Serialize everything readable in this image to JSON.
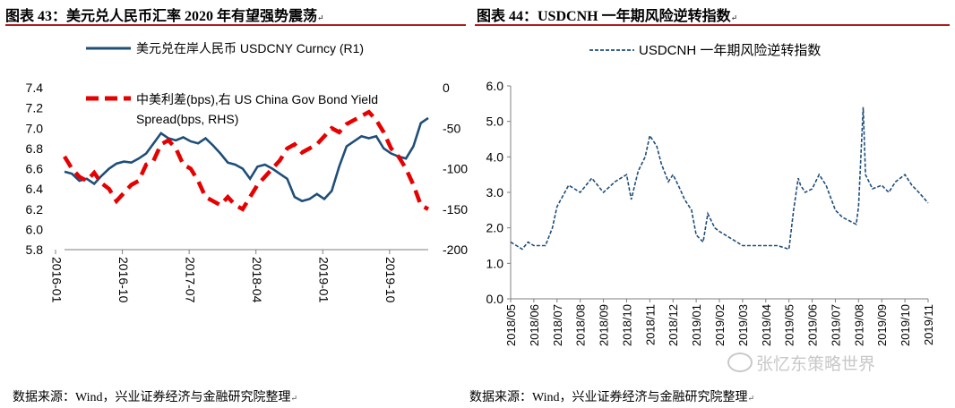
{
  "left": {
    "title": "图表 43：美元兑人民币汇率 2020 年有望强势震荡",
    "source": "数据来源：Wind，兴业证券经济与金融研究院整理"
  },
  "right": {
    "title": "图表 44：USDCNH 一年期风险逆转指数",
    "source": "数据来源：Wind，兴业证券经济与金融研究院整理"
  },
  "watermark": "张忆东策略世界",
  "colors": {
    "navy": "#1f4e79",
    "red": "#e60000",
    "rule": "#b01c1c",
    "axis": "#7f7f7f"
  },
  "chart_data": [
    {
      "type": "line",
      "title": "图表 43：美元兑人民币汇率 2020 年有望强势震荡",
      "xlabel": "",
      "ylabel": "",
      "x_ticks": [
        "2016-01",
        "2016-10",
        "2017-07",
        "2018-04",
        "2019-01",
        "2019-10"
      ],
      "ylim": [
        5.8,
        7.4
      ],
      "y_ticks": [
        5.8,
        6.0,
        6.2,
        6.4,
        6.6,
        6.8,
        7.0,
        7.2,
        7.4
      ],
      "y2_ticks": [
        "-200",
        "-150",
        "-100",
        "-50",
        "0"
      ],
      "y2lim": [
        -200,
        0
      ],
      "legend_position": "top",
      "series": [
        {
          "name": "美元兑在岸人民币 USDCNY Curncy (R1)",
          "axis": "left",
          "style": "solid",
          "x": [
            0,
            1,
            2,
            3,
            4,
            5,
            6,
            7,
            8,
            9,
            10,
            11,
            12,
            13,
            14,
            15,
            16,
            17,
            18,
            19,
            20,
            21,
            22,
            23,
            24,
            25,
            26,
            27,
            28,
            29,
            30,
            31,
            32,
            33,
            34,
            35,
            36,
            37,
            38,
            39,
            40,
            41,
            42,
            43,
            44,
            45,
            46,
            47,
            48,
            49
          ],
          "y": [
            6.57,
            6.55,
            6.48,
            6.5,
            6.45,
            6.53,
            6.6,
            6.65,
            6.67,
            6.66,
            6.7,
            6.75,
            6.85,
            6.95,
            6.9,
            6.88,
            6.91,
            6.87,
            6.85,
            6.9,
            6.83,
            6.75,
            6.66,
            6.64,
            6.6,
            6.5,
            6.62,
            6.64,
            6.6,
            6.55,
            6.5,
            6.32,
            6.28,
            6.3,
            6.35,
            6.3,
            6.38,
            6.62,
            6.82,
            6.87,
            6.92,
            6.9,
            6.92,
            6.8,
            6.75,
            6.72,
            6.7,
            6.82,
            7.05,
            7.1
          ]
        },
        {
          "name": "中美利差(bps),右 US China Gov Bond Yield Spread(bps, RHS)",
          "axis": "right",
          "style": "dashed",
          "x": [
            0,
            1,
            2,
            3,
            4,
            5,
            6,
            7,
            8,
            9,
            10,
            11,
            12,
            13,
            14,
            15,
            16,
            17,
            18,
            19,
            20,
            21,
            22,
            23,
            24,
            25,
            26,
            27,
            28,
            29,
            30,
            31,
            32,
            33,
            34,
            35,
            36,
            37,
            38,
            39,
            40,
            41,
            42,
            43,
            44,
            45,
            46,
            47,
            48,
            49
          ],
          "y": [
            -85,
            -100,
            -110,
            -115,
            -105,
            -118,
            -125,
            -140,
            -130,
            -120,
            -115,
            -95,
            -90,
            -70,
            -65,
            -75,
            -95,
            -100,
            -115,
            -135,
            -140,
            -145,
            -135,
            -145,
            -150,
            -135,
            -120,
            -110,
            -100,
            -90,
            -75,
            -70,
            -80,
            -75,
            -70,
            -60,
            -50,
            -55,
            -45,
            -40,
            -35,
            -30,
            -40,
            -55,
            -75,
            -85,
            -100,
            -120,
            -145,
            -150
          ]
        }
      ]
    },
    {
      "type": "line",
      "title": "图表 44：USDCNH 一年期风险逆转指数",
      "xlabel": "",
      "ylabel": "",
      "x_ticks": [
        "2018/05",
        "2018/06",
        "2018/07",
        "2018/08",
        "2018/09",
        "2018/10",
        "2018/11",
        "2018/12",
        "2019/01",
        "2019/02",
        "2019/03",
        "2019/04",
        "2019/05",
        "2019/06",
        "2019/07",
        "2019/08",
        "2019/09",
        "2019/10",
        "2019/11"
      ],
      "ylim": [
        0,
        6
      ],
      "y_ticks": [
        0.0,
        1.0,
        2.0,
        3.0,
        4.0,
        5.0,
        6.0
      ],
      "legend_position": "top",
      "series": [
        {
          "name": "USDCNH 一年期风险逆转指数",
          "style": "dashed",
          "x": [
            0,
            0.25,
            0.5,
            0.75,
            1,
            1.5,
            1.8,
            2,
            2.5,
            3,
            3.5,
            4,
            4.5,
            5,
            5.2,
            5.5,
            5.8,
            6,
            6.3,
            6.5,
            6.8,
            7,
            7.3,
            7.5,
            7.8,
            8,
            8.3,
            8.5,
            8.8,
            9,
            9.5,
            10,
            10.5,
            11,
            11.5,
            12,
            12.2,
            12.4,
            12.5,
            12.7,
            13,
            13.3,
            13.6,
            14,
            14.3,
            14.6,
            14.9,
            15,
            15.1,
            15.2,
            15.3,
            15.6,
            16,
            16.3,
            16.6,
            17,
            17.3,
            17.6,
            18
          ],
          "y": [
            1.6,
            1.5,
            1.4,
            1.6,
            1.5,
            1.5,
            2.0,
            2.6,
            3.2,
            3.0,
            3.4,
            3.0,
            3.3,
            3.5,
            2.8,
            3.6,
            4.0,
            4.6,
            4.3,
            3.8,
            3.3,
            3.5,
            3.1,
            2.8,
            2.5,
            1.8,
            1.6,
            2.4,
            2.0,
            1.9,
            1.7,
            1.5,
            1.5,
            1.5,
            1.5,
            1.4,
            2.5,
            3.4,
            3.2,
            3.0,
            3.1,
            3.5,
            3.2,
            2.5,
            2.3,
            2.2,
            2.1,
            2.6,
            4.0,
            5.4,
            3.5,
            3.1,
            3.2,
            3.0,
            3.3,
            3.5,
            3.2,
            3.0,
            2.7
          ]
        }
      ]
    }
  ]
}
